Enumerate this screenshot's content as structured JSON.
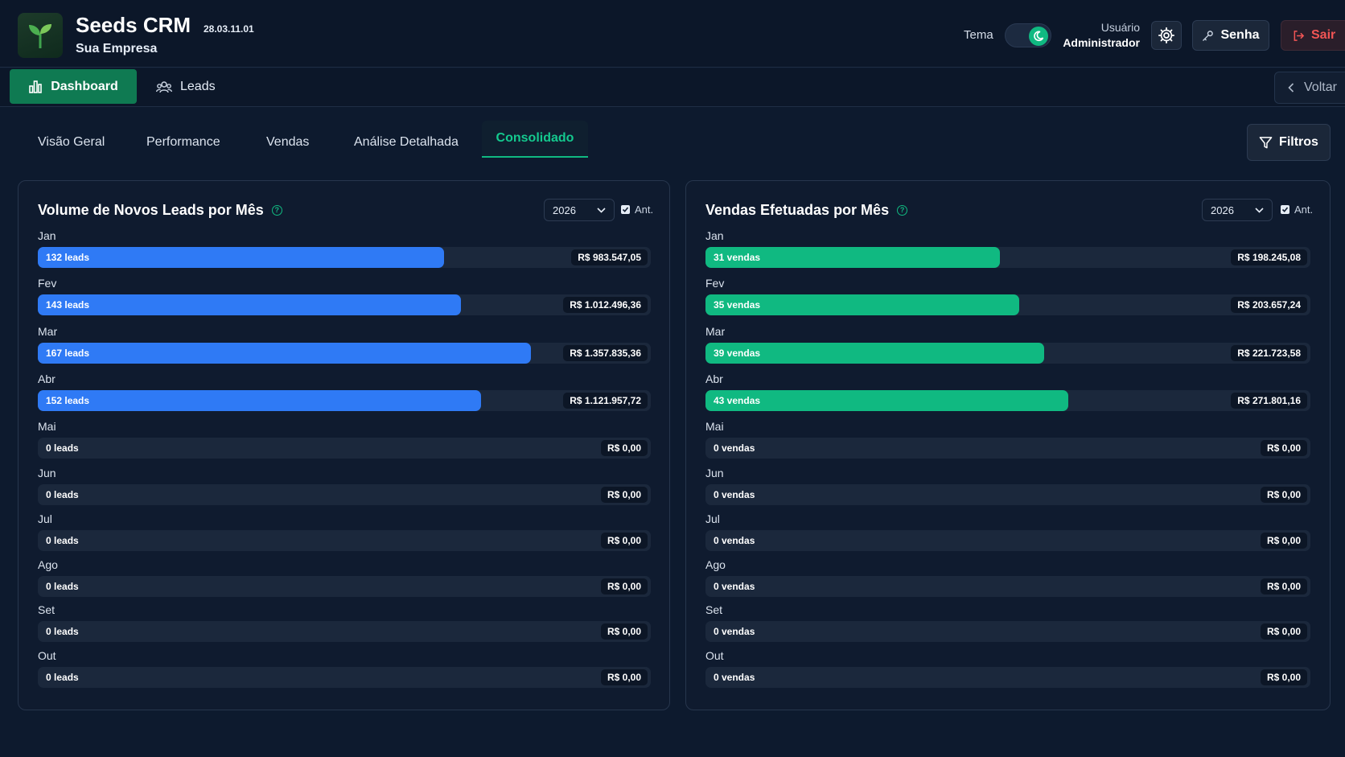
{
  "header": {
    "app_title": "Seeds CRM",
    "version": "28.03.11.01",
    "company": "Sua Empresa",
    "theme_label": "Tema",
    "user_role": "Usuário",
    "user_name": "Administrador",
    "senha_label": "Senha",
    "sair_label": "Sair",
    "logo_icon": "seedling-icon",
    "accent_color": "#10b981",
    "danger_color": "#f25555"
  },
  "nav": {
    "dashboard_label": "Dashboard",
    "leads_label": "Leads",
    "voltar_label": "Voltar"
  },
  "tabs": {
    "items": [
      "Visão Geral",
      "Performance",
      "Vendas",
      "Análise Detalhada",
      "Consolidado"
    ],
    "active": "Consolidado",
    "filtros_label": "Filtros"
  },
  "panels": {
    "leads": {
      "title": "Volume de Novos Leads por Mês",
      "year": "2026",
      "ant_label": "Ant.",
      "ant_checked": true,
      "bar_color": "#2f7af5"
    },
    "vendas": {
      "title": "Vendas Efetuadas por Mês",
      "year": "2026",
      "ant_label": "Ant.",
      "ant_checked": true,
      "bar_color": "#10b981"
    }
  },
  "chart_data": [
    {
      "type": "bar",
      "title": "Volume de Novos Leads por Mês",
      "categories": [
        "Jan",
        "Fev",
        "Mar",
        "Abr",
        "Mai",
        "Jun",
        "Jul",
        "Ago",
        "Set",
        "Out"
      ],
      "values": [
        132,
        143,
        167,
        152,
        0,
        0,
        0,
        0,
        0,
        0
      ],
      "value_labels": [
        "132 leads",
        "143 leads",
        "167 leads",
        "152 leads",
        "0 leads",
        "0 leads",
        "0 leads",
        "0 leads",
        "0 leads",
        "0 leads"
      ],
      "amounts": [
        "R$ 983.547,05",
        "R$ 1.012.496,36",
        "R$ 1.357.835,36",
        "R$ 1.121.957,72",
        "R$ 0,00",
        "R$ 0,00",
        "R$ 0,00",
        "R$ 0,00",
        "R$ 0,00",
        "R$ 0,00"
      ],
      "fill_fraction": [
        0.663,
        0.69,
        0.805,
        0.723,
        0,
        0,
        0,
        0,
        0,
        0
      ]
    },
    {
      "type": "bar",
      "title": "Vendas Efetuadas por Mês",
      "categories": [
        "Jan",
        "Fev",
        "Mar",
        "Abr",
        "Mai",
        "Jun",
        "Jul",
        "Ago",
        "Set",
        "Out"
      ],
      "values": [
        31,
        35,
        39,
        43,
        0,
        0,
        0,
        0,
        0,
        0
      ],
      "value_labels": [
        "31 vendas",
        "35 vendas",
        "39 vendas",
        "43 vendas",
        "0 vendas",
        "0 vendas",
        "0 vendas",
        "0 vendas",
        "0 vendas",
        "0 vendas"
      ],
      "amounts": [
        "R$ 198.245,08",
        "R$ 203.657,24",
        "R$ 221.723,58",
        "R$ 271.801,16",
        "R$ 0,00",
        "R$ 0,00",
        "R$ 0,00",
        "R$ 0,00",
        "R$ 0,00",
        "R$ 0,00"
      ],
      "fill_fraction": [
        0.487,
        0.519,
        0.56,
        0.6,
        0,
        0,
        0,
        0,
        0,
        0
      ]
    }
  ]
}
